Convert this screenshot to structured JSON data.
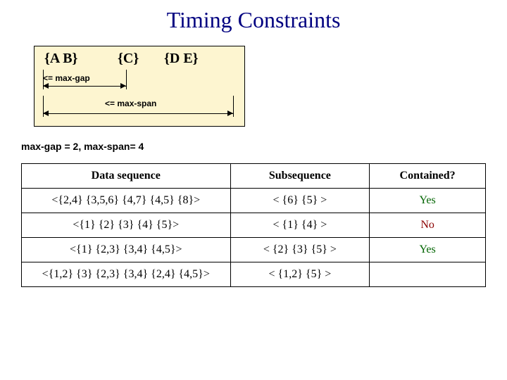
{
  "title": "Timing Constraints",
  "diagram": {
    "items": [
      "{A   B}",
      "{C}",
      "{D   E}"
    ],
    "gap_label": "<= max-gap",
    "span_label": "<= max-span",
    "bg_color": "#fdf5d0",
    "shadow_color": "#808080"
  },
  "params_text": "max-gap = 2, max-span= 4",
  "table": {
    "headers": [
      "Data sequence",
      "Subsequence",
      "Contained?"
    ],
    "rows": [
      {
        "data": "<{2,4} {3,5,6} {4,7} {4,5} {8}>",
        "sub": "< {6} {5} >",
        "contained": "Yes",
        "cls": "yes"
      },
      {
        "data": "<{1} {2} {3} {4} {5}>",
        "sub": "< {1} {4} >",
        "contained": "No",
        "cls": "no"
      },
      {
        "data": "<{1} {2,3} {3,4} {4,5}>",
        "sub": "< {2} {3} {5} >",
        "contained": "Yes",
        "cls": "yes"
      },
      {
        "data": "<{1,2} {3} {2,3} {3,4} {2,4} {4,5}>",
        "sub": "< {1,2} {5} >",
        "contained": "",
        "cls": ""
      }
    ]
  }
}
